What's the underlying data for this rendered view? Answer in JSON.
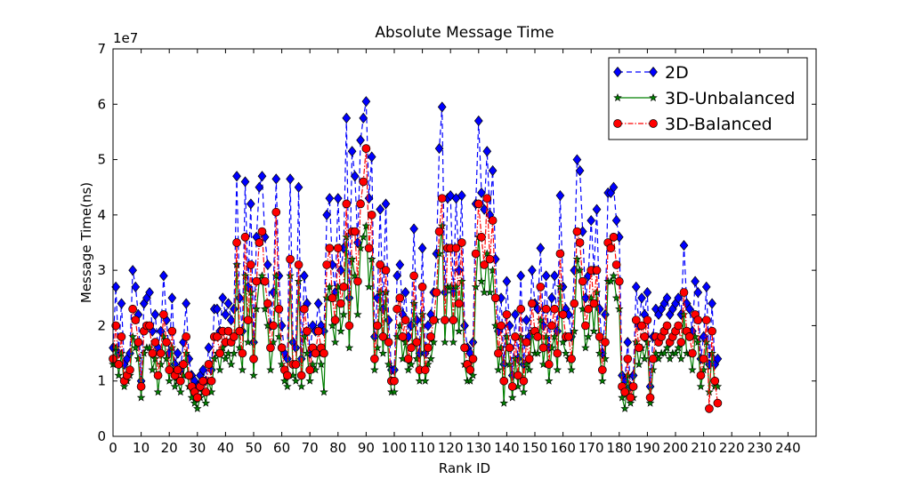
{
  "chart_data": {
    "type": "line",
    "title": "Absolute Message Time",
    "xlabel": "Rank ID",
    "ylabel": "Message Time(ns)",
    "offset_text": "1e7",
    "xlim": [
      0,
      250
    ],
    "ylim": [
      0,
      7
    ],
    "xticks": [
      0,
      10,
      20,
      30,
      40,
      50,
      60,
      70,
      80,
      90,
      100,
      110,
      120,
      130,
      140,
      150,
      160,
      170,
      180,
      190,
      200,
      210,
      220,
      230,
      240
    ],
    "yticks": [
      0,
      1,
      2,
      3,
      4,
      5,
      6,
      7
    ],
    "legend": "upper right",
    "x": [
      0,
      1,
      2,
      3,
      4,
      5,
      6,
      7,
      8,
      9,
      10,
      11,
      12,
      13,
      14,
      15,
      16,
      17,
      18,
      19,
      20,
      21,
      22,
      23,
      24,
      25,
      26,
      27,
      28,
      29,
      30,
      31,
      32,
      33,
      34,
      35,
      36,
      37,
      38,
      39,
      40,
      41,
      42,
      43,
      44,
      45,
      46,
      47,
      48,
      49,
      50,
      51,
      52,
      53,
      54,
      55,
      56,
      57,
      58,
      59,
      60,
      61,
      62,
      63,
      64,
      65,
      66,
      67,
      68,
      69,
      70,
      71,
      72,
      73,
      74,
      75,
      76,
      77,
      78,
      79,
      80,
      81,
      82,
      83,
      84,
      85,
      86,
      87,
      88,
      89,
      90,
      91,
      92,
      93,
      94,
      95,
      96,
      97,
      98,
      99,
      100,
      101,
      102,
      103,
      104,
      105,
      106,
      107,
      108,
      109,
      110,
      111,
      112,
      113,
      114,
      115,
      116,
      117,
      118,
      119,
      120,
      121,
      122,
      123,
      124,
      125,
      126,
      127,
      128,
      129,
      130,
      131,
      132,
      133,
      134,
      135,
      136,
      137,
      138,
      139,
      140,
      141,
      142,
      143,
      144,
      145,
      146,
      147,
      148,
      149,
      150,
      151,
      152,
      153,
      154,
      155,
      156,
      157,
      158,
      159,
      160,
      161,
      162,
      163,
      164,
      165,
      166,
      167,
      168,
      169,
      170,
      171,
      172,
      173,
      174,
      175,
      176,
      177,
      178,
      179,
      180,
      181,
      182,
      183,
      184,
      185,
      186,
      187,
      188,
      189,
      190,
      191,
      192,
      193,
      194,
      195,
      196,
      197,
      198,
      199,
      200,
      201,
      202,
      203,
      204,
      205,
      206,
      207,
      208,
      209,
      210,
      211,
      212,
      213,
      214,
      215
    ],
    "series": [
      {
        "name": "2D",
        "color": "#0000ff",
        "linestyle": "dashed",
        "marker": "diamond",
        "values": [
          1.6,
          2.7,
          1.5,
          2.4,
          1.3,
          1.4,
          1.5,
          3.0,
          2.7,
          2.2,
          1.0,
          2.4,
          2.5,
          2.6,
          1.9,
          2.2,
          1.6,
          1.9,
          2.9,
          2.1,
          1.5,
          2.5,
          1.3,
          1.5,
          1.2,
          1.7,
          2.4,
          1.4,
          1.1,
          1.0,
          0.9,
          1.1,
          1.2,
          1.0,
          1.6,
          1.2,
          2.3,
          2.3,
          1.9,
          2.5,
          2.2,
          2.4,
          2.1,
          2.3,
          4.7,
          2.5,
          1.9,
          4.6,
          2.7,
          4.2,
          1.7,
          3.6,
          4.5,
          4.7,
          3.6,
          3.1,
          2.0,
          2.6,
          4.65,
          2.9,
          2.0,
          1.5,
          1.4,
          4.65,
          1.7,
          1.6,
          4.5,
          1.4,
          2.9,
          2.4,
          1.5,
          2.0,
          1.9,
          2.4,
          2.0,
          1.9,
          4.0,
          4.3,
          3.1,
          2.6,
          4.3,
          3.0,
          3.4,
          5.75,
          2.5,
          5.15,
          4.7,
          3.5,
          5.35,
          5.75,
          6.05,
          4.3,
          5.05,
          1.8,
          2.5,
          4.1,
          2.3,
          4.2,
          2.1,
          1.2,
          1.2,
          2.9,
          3.1,
          2.2,
          2.6,
          1.8,
          2.0,
          3.75,
          2.1,
          1.5,
          3.4,
          1.5,
          2.0,
          2.2,
          2.6,
          3.3,
          5.2,
          5.95,
          2.6,
          4.3,
          4.35,
          2.6,
          4.3,
          3.0,
          4.35,
          2.0,
          1.6,
          1.5,
          1.7,
          4.2,
          5.7,
          4.4,
          4.1,
          5.15,
          4.0,
          4.8,
          3.2,
          1.9,
          2.5,
          1.3,
          2.8,
          2.0,
          1.1,
          2.2,
          1.4,
          2.9,
          1.3,
          2.1,
          1.8,
          3.0,
          2.4,
          2.3,
          3.4,
          2.0,
          2.9,
          1.6,
          2.5,
          2.9,
          1.9,
          4.35,
          2.7,
          2.3,
          2.2,
          1.8,
          3.0,
          5.0,
          4.8,
          3.7,
          2.5,
          2.9,
          3.9,
          3.0,
          4.1,
          2.3,
          1.5,
          2.2,
          4.4,
          4.4,
          4.5,
          3.9,
          3.6,
          1.1,
          1.0,
          1.7,
          0.9,
          1.1,
          2.7,
          2.0,
          2.5,
          2.2,
          2.6,
          0.9,
          1.8,
          2.3,
          2.2,
          2.3,
          2.4,
          2.5,
          2.2,
          2.3,
          2.4,
          2.5,
          2.2,
          3.45,
          2.4,
          2.3,
          1.9,
          2.8,
          2.6,
          1.4,
          1.8,
          2.7,
          1.3,
          2.4,
          1.3,
          1.4
        ]
      },
      {
        "name": "3D-Unbalanced",
        "color": "#007f00",
        "linestyle": "solid",
        "marker": "star",
        "values": [
          1.3,
          1.6,
          1.1,
          1.5,
          0.9,
          1.0,
          1.1,
          1.8,
          1.6,
          1.4,
          0.7,
          1.5,
          1.6,
          1.6,
          1.2,
          1.4,
          0.8,
          1.3,
          1.8,
          1.4,
          1.0,
          1.6,
          0.9,
          1.0,
          0.8,
          1.1,
          1.5,
          0.9,
          0.7,
          0.6,
          0.5,
          0.7,
          0.8,
          0.6,
          1.0,
          0.8,
          1.4,
          1.5,
          1.2,
          1.6,
          1.4,
          1.5,
          1.3,
          1.5,
          3.1,
          1.6,
          1.2,
          2.9,
          1.7,
          2.6,
          1.1,
          2.3,
          2.8,
          2.9,
          2.3,
          2.0,
          1.2,
          1.7,
          2.9,
          1.8,
          1.3,
          1.0,
          0.9,
          2.9,
          1.1,
          1.0,
          2.8,
          0.9,
          1.8,
          1.5,
          1.0,
          1.3,
          1.2,
          1.5,
          1.3,
          0.8,
          2.5,
          2.7,
          2.0,
          1.7,
          2.7,
          1.9,
          2.2,
          3.6,
          1.6,
          3.2,
          2.9,
          2.2,
          3.4,
          3.6,
          3.8,
          2.7,
          3.2,
          1.2,
          1.6,
          2.6,
          1.5,
          2.6,
          1.3,
          0.8,
          0.8,
          1.8,
          2.0,
          1.4,
          1.7,
          1.2,
          1.3,
          2.4,
          1.4,
          1.0,
          2.2,
          1.0,
          1.3,
          1.4,
          1.7,
          2.1,
          3.3,
          3.8,
          1.7,
          2.7,
          2.7,
          1.7,
          2.7,
          1.9,
          2.8,
          1.3,
          1.0,
          1.0,
          1.1,
          2.7,
          3.6,
          2.8,
          2.6,
          3.3,
          2.6,
          3.0,
          2.0,
          1.2,
          1.6,
          0.6,
          1.8,
          1.3,
          0.7,
          1.4,
          0.9,
          1.8,
          0.8,
          1.3,
          1.2,
          1.9,
          1.5,
          1.5,
          2.1,
          1.3,
          1.8,
          1.0,
          1.6,
          1.8,
          1.2,
          2.7,
          1.7,
          1.5,
          1.4,
          1.2,
          1.9,
          3.2,
          3.0,
          2.3,
          1.6,
          1.8,
          2.5,
          1.9,
          2.6,
          1.5,
          1.0,
          1.4,
          2.8,
          2.8,
          2.9,
          2.5,
          2.3,
          0.7,
          0.5,
          1.1,
          0.6,
          0.7,
          1.7,
          1.3,
          1.6,
          1.4,
          1.7,
          0.6,
          1.2,
          1.5,
          1.4,
          1.5,
          1.5,
          1.6,
          1.4,
          1.5,
          1.5,
          1.6,
          1.4,
          2.2,
          1.5,
          1.5,
          1.2,
          1.8,
          1.7,
          0.9,
          1.2,
          1.7,
          0.8,
          1.5,
          0.9,
          0.9
        ]
      },
      {
        "name": "3D-Balanced",
        "color": "#ff0000",
        "linestyle": "dashdot",
        "marker": "circle",
        "values": [
          1.4,
          2.0,
          1.3,
          1.8,
          1.0,
          1.1,
          1.2,
          2.3,
          2.1,
          1.7,
          0.9,
          1.9,
          2.0,
          2.0,
          1.5,
          1.7,
          1.1,
          1.5,
          2.2,
          1.7,
          1.2,
          1.9,
          1.1,
          1.2,
          1.0,
          1.3,
          1.8,
          1.1,
          0.9,
          0.8,
          0.7,
          0.9,
          1.0,
          0.8,
          1.3,
          1.0,
          1.8,
          1.8,
          1.5,
          1.9,
          1.7,
          1.9,
          1.7,
          1.8,
          3.5,
          1.9,
          1.5,
          3.6,
          2.1,
          3.1,
          1.4,
          2.8,
          3.5,
          3.7,
          2.8,
          2.4,
          1.6,
          2.0,
          4.05,
          2.3,
          1.6,
          1.2,
          1.1,
          3.2,
          1.3,
          1.3,
          3.1,
          1.1,
          2.3,
          1.9,
          1.2,
          1.6,
          1.5,
          1.9,
          1.6,
          1.5,
          3.1,
          3.4,
          2.5,
          2.1,
          3.4,
          2.4,
          2.7,
          4.2,
          2.0,
          3.7,
          3.7,
          2.8,
          4.2,
          4.6,
          5.2,
          3.4,
          4.0,
          1.4,
          2.0,
          3.1,
          1.8,
          3.0,
          1.7,
          1.0,
          1.0,
          2.3,
          2.5,
          1.8,
          2.1,
          1.4,
          1.6,
          2.9,
          1.7,
          1.2,
          2.7,
          1.2,
          1.6,
          1.8,
          2.1,
          2.6,
          3.7,
          4.3,
          2.1,
          3.4,
          3.4,
          2.1,
          3.4,
          2.4,
          3.5,
          1.6,
          1.3,
          1.2,
          1.4,
          3.3,
          4.2,
          3.6,
          3.1,
          4.3,
          3.2,
          3.9,
          2.5,
          1.5,
          2.0,
          1.0,
          2.2,
          1.6,
          0.9,
          1.8,
          1.1,
          2.3,
          1.0,
          1.7,
          1.4,
          2.4,
          1.9,
          1.8,
          2.7,
          1.6,
          2.3,
          1.3,
          2.0,
          2.3,
          1.5,
          3.3,
          2.2,
          1.8,
          1.8,
          1.4,
          2.4,
          3.7,
          3.5,
          2.8,
          2.0,
          2.3,
          3.0,
          2.4,
          3.0,
          1.8,
          1.2,
          1.7,
          3.5,
          3.4,
          3.6,
          3.1,
          2.8,
          0.9,
          0.8,
          1.4,
          0.7,
          0.9,
          2.1,
          1.6,
          2.0,
          1.8,
          2.1,
          0.7,
          1.4,
          1.8,
          1.7,
          1.8,
          1.9,
          2.0,
          1.7,
          1.8,
          1.9,
          2.0,
          1.7,
          2.6,
          1.9,
          1.8,
          1.5,
          2.2,
          2.1,
          1.1,
          1.4,
          2.1,
          0.5,
          1.9,
          1.0,
          0.6
        ]
      }
    ]
  }
}
